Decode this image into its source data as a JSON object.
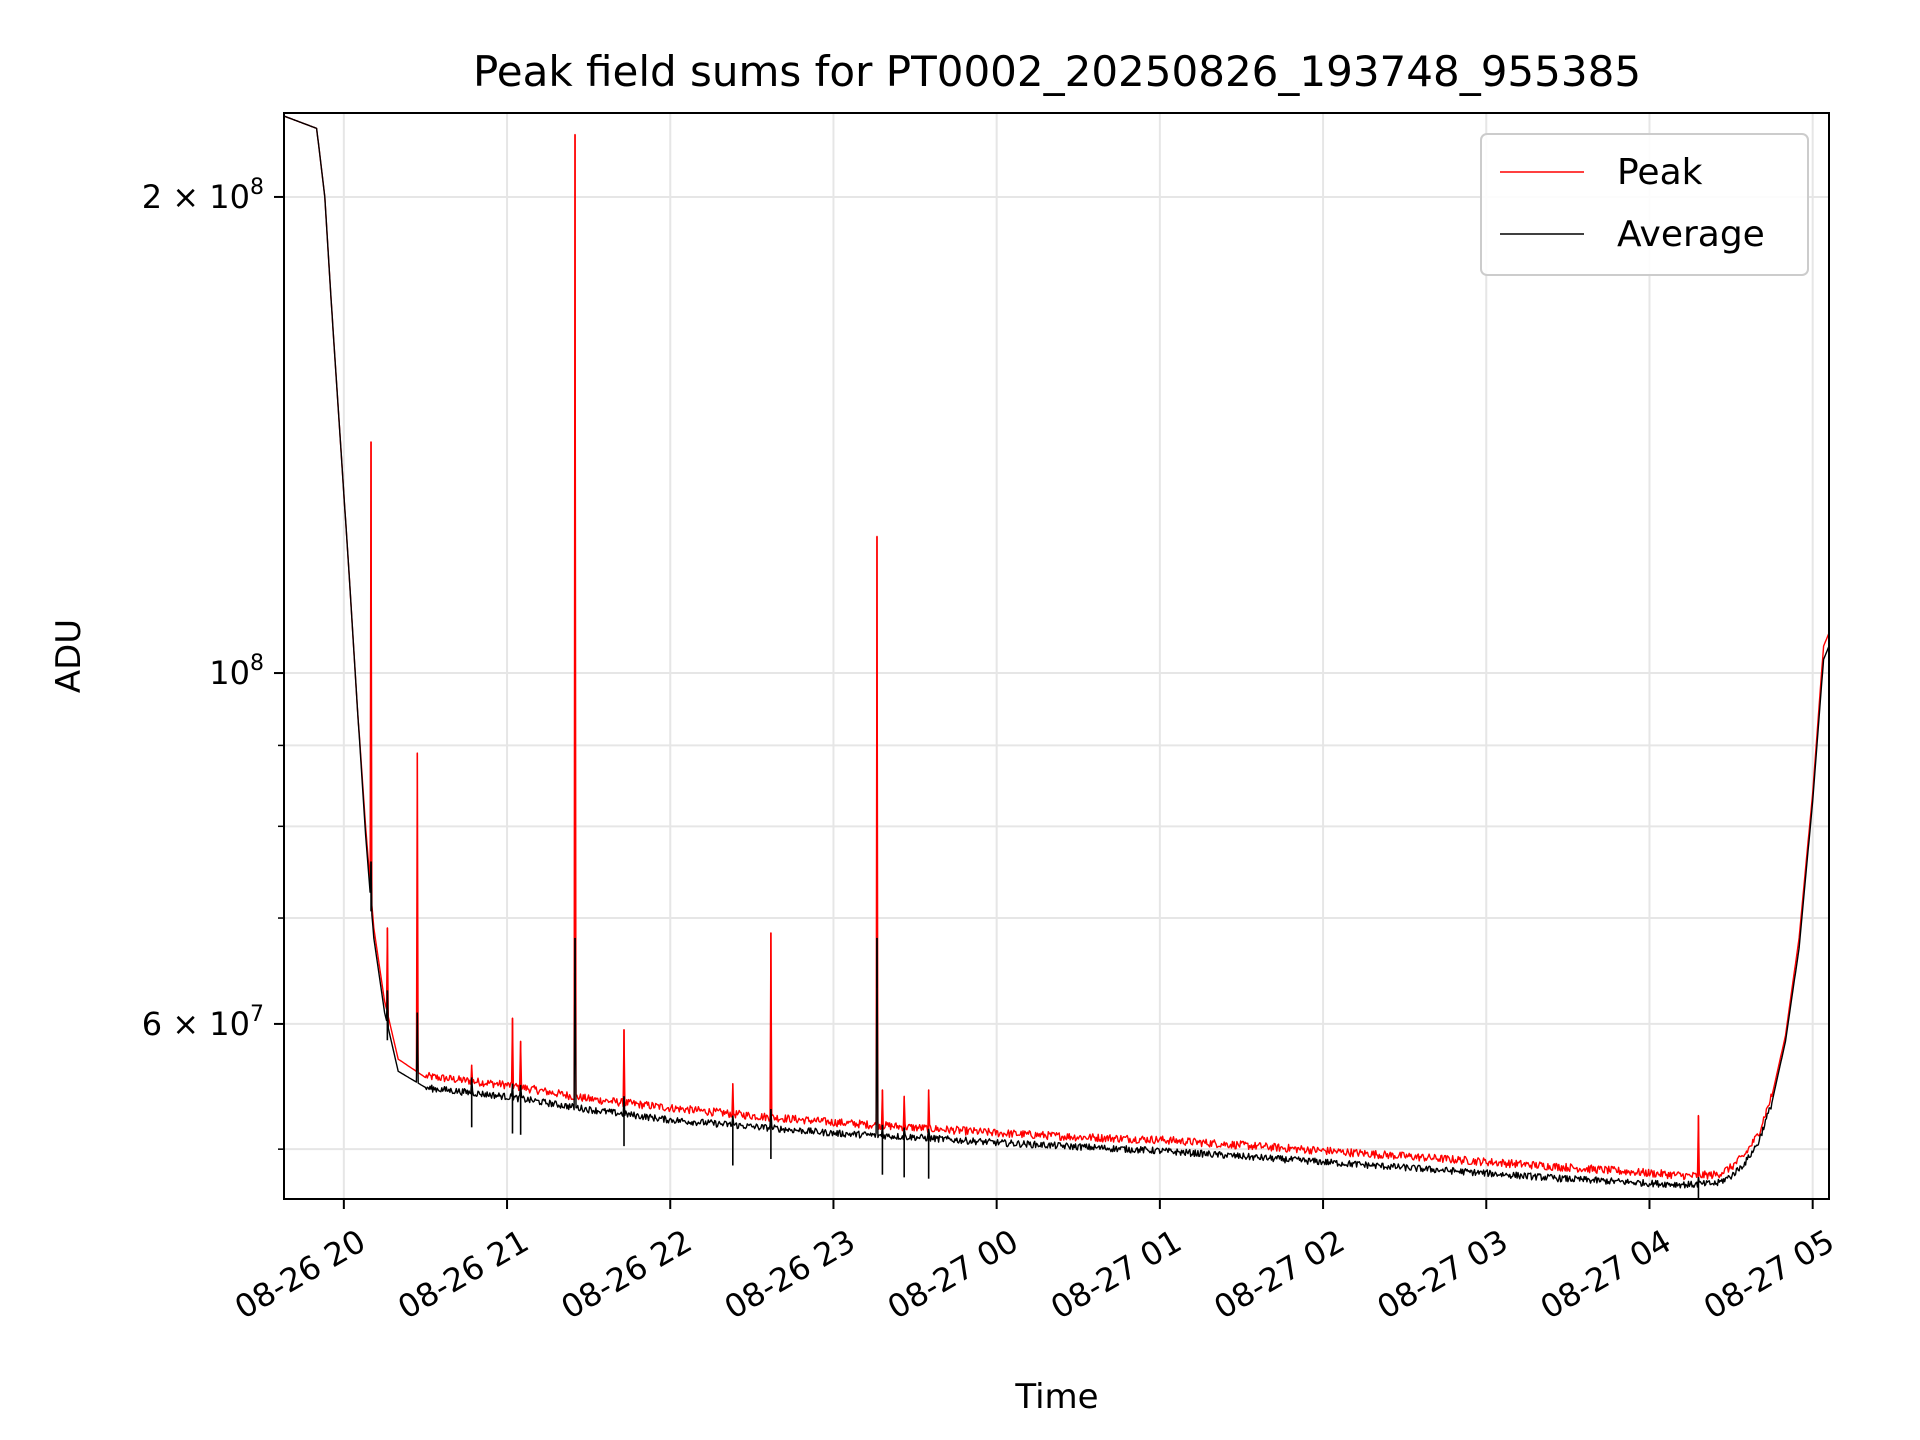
{
  "chart_data": {
    "type": "line",
    "title": "Peak field sums for PT0002_20250826_193748_955385",
    "xlabel": "Time",
    "ylabel": "ADU",
    "yscale": "log",
    "grid": true,
    "legend_position": "top-right",
    "xlim": [
      "2025-08-26 19:38",
      "2025-08-27 05:06"
    ],
    "ylim": [
      46500000,
      226000000
    ],
    "x_ticks": [
      {
        "value": "2025-08-26 20:00",
        "label": "08-26 20"
      },
      {
        "value": "2025-08-26 21:00",
        "label": "08-26 21"
      },
      {
        "value": "2025-08-26 22:00",
        "label": "08-26 22"
      },
      {
        "value": "2025-08-26 23:00",
        "label": "08-26 23"
      },
      {
        "value": "2025-08-27 00:00",
        "label": "08-27 00"
      },
      {
        "value": "2025-08-27 01:00",
        "label": "08-27 01"
      },
      {
        "value": "2025-08-27 02:00",
        "label": "08-27 02"
      },
      {
        "value": "2025-08-27 03:00",
        "label": "08-27 03"
      },
      {
        "value": "2025-08-27 04:00",
        "label": "08-27 04"
      },
      {
        "value": "2025-08-27 05:00",
        "label": "08-27 05"
      }
    ],
    "y_ticks": [
      {
        "value": 60000000,
        "mantissa": "6",
        "exponent": "7"
      },
      {
        "value": 100000000,
        "mantissa": "",
        "exponent": "8"
      },
      {
        "value": 200000000,
        "mantissa": "2",
        "exponent": "8"
      }
    ],
    "y_minor_ticks": [
      50000000,
      70000000,
      80000000,
      90000000
    ],
    "series": [
      {
        "name": "Peak",
        "color": "#ff0000",
        "x": [
          "2025-08-26 19:38",
          "2025-08-26 19:50",
          "2025-08-26 19:53",
          "2025-08-26 19:56",
          "2025-08-26 19:59",
          "2025-08-26 20:02",
          "2025-08-26 20:05",
          "2025-08-26 20:08",
          "2025-08-26 20:11",
          "2025-08-26 20:15",
          "2025-08-26 20:20",
          "2025-08-26 20:30",
          "2025-08-26 21:00",
          "2025-08-26 21:30",
          "2025-08-26 22:00",
          "2025-08-26 22:30",
          "2025-08-26 23:00",
          "2025-08-26 23:30",
          "2025-08-27 00:00",
          "2025-08-27 00:30",
          "2025-08-27 01:00",
          "2025-08-27 01:30",
          "2025-08-27 02:00",
          "2025-08-27 02:30",
          "2025-08-27 03:00",
          "2025-08-27 03:30",
          "2025-08-27 04:00",
          "2025-08-27 04:15",
          "2025-08-27 04:25",
          "2025-08-27 04:30",
          "2025-08-27 04:35",
          "2025-08-27 04:40",
          "2025-08-27 04:45",
          "2025-08-27 04:50",
          "2025-08-27 04:55",
          "2025-08-27 05:00",
          "2025-08-27 05:04",
          "2025-08-27 05:06"
        ],
        "values": [
          225000000,
          221000000,
          200000000,
          165000000,
          138000000,
          115000000,
          95000000,
          80000000,
          69000000,
          62000000,
          57000000,
          55500000,
          54800000,
          53700000,
          53000000,
          52400000,
          51900000,
          51500000,
          51100000,
          50800000,
          50600000,
          50200000,
          49800000,
          49400000,
          49000000,
          48600000,
          48200000,
          48000000,
          48100000,
          48600000,
          49500000,
          51000000,
          54000000,
          59000000,
          68000000,
          84000000,
          104000000,
          106000000
        ]
      },
      {
        "name": "Average",
        "color": "#000000",
        "x": [
          "2025-08-26 19:38",
          "2025-08-26 19:50",
          "2025-08-26 19:53",
          "2025-08-26 19:56",
          "2025-08-26 19:59",
          "2025-08-26 20:02",
          "2025-08-26 20:05",
          "2025-08-26 20:08",
          "2025-08-26 20:11",
          "2025-08-26 20:15",
          "2025-08-26 20:20",
          "2025-08-26 20:30",
          "2025-08-26 21:00",
          "2025-08-26 21:30",
          "2025-08-26 22:00",
          "2025-08-26 22:30",
          "2025-08-26 23:00",
          "2025-08-26 23:30",
          "2025-08-27 00:00",
          "2025-08-27 00:30",
          "2025-08-27 01:00",
          "2025-08-27 01:30",
          "2025-08-27 02:00",
          "2025-08-27 02:30",
          "2025-08-27 03:00",
          "2025-08-27 03:30",
          "2025-08-27 04:00",
          "2025-08-27 04:15",
          "2025-08-27 04:25",
          "2025-08-27 04:30",
          "2025-08-27 04:35",
          "2025-08-27 04:40",
          "2025-08-27 04:45",
          "2025-08-27 04:50",
          "2025-08-27 04:55",
          "2025-08-27 05:00",
          "2025-08-27 05:04",
          "2025-08-27 05:06"
        ],
        "values": [
          225000000,
          221000000,
          200000000,
          165000000,
          138000000,
          115000000,
          95000000,
          79000000,
          68000000,
          61000000,
          56000000,
          54700000,
          54000000,
          53000000,
          52200000,
          51700000,
          51200000,
          50900000,
          50500000,
          50200000,
          49900000,
          49500000,
          49100000,
          48700000,
          48300000,
          47900000,
          47600000,
          47500000,
          47600000,
          48100000,
          49000000,
          50500000,
          53500000,
          58500000,
          67000000,
          83000000,
          102000000,
          104000000
        ]
      }
    ],
    "spikes": [
      {
        "x": "2025-08-26 20:10",
        "peak": 140000000,
        "average": 76000000
      },
      {
        "x": "2025-08-26 20:16",
        "peak": 69000000,
        "average": 63000000
      },
      {
        "x": "2025-08-26 20:27",
        "peak": 89000000,
        "average": 61000000
      },
      {
        "x": "2025-08-26 20:47",
        "peak": 56500000,
        "average": 55500000
      },
      {
        "x": "2025-08-26 21:02",
        "peak": 60500000,
        "average": 55000000
      },
      {
        "x": "2025-08-26 21:05",
        "peak": 58500000,
        "average": 54900000
      },
      {
        "x": "2025-08-26 21:25",
        "peak": 219000000,
        "average": 68000000
      },
      {
        "x": "2025-08-26 21:43",
        "peak": 59500000,
        "average": 54000000
      },
      {
        "x": "2025-08-26 22:23",
        "peak": 55000000,
        "average": 52500000
      },
      {
        "x": "2025-08-26 22:37",
        "peak": 68500000,
        "average": 53000000
      },
      {
        "x": "2025-08-26 23:16",
        "peak": 122000000,
        "average": 68000000
      },
      {
        "x": "2025-08-26 23:18",
        "peak": 54500000,
        "average": 51800000
      },
      {
        "x": "2025-08-26 23:26",
        "peak": 54000000,
        "average": 51600000
      },
      {
        "x": "2025-08-26 23:35",
        "peak": 54500000,
        "average": 51500000
      },
      {
        "x": "2025-08-27 04:18",
        "peak": 52500000,
        "average": 48000000
      }
    ]
  }
}
